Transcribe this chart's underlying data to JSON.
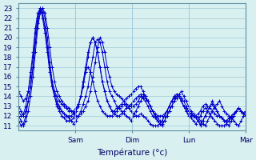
{
  "title": "Température (°c)",
  "xlabel": "Température (°c)",
  "background_color": "#d8f0f0",
  "grid_color": "#a0c8d8",
  "line_color": "#0000cc",
  "yticks": [
    11,
    12,
    13,
    14,
    15,
    16,
    17,
    18,
    19,
    20,
    21,
    22,
    23
  ],
  "ylim": [
    10.5,
    23.5
  ],
  "xlim": [
    0,
    96
  ],
  "xtick_positions": [
    24,
    48,
    72,
    96
  ],
  "xtick_labels": [
    "Sam",
    "Dim",
    "Lun",
    "Mar"
  ],
  "lines": [
    [
      11.5,
      11.0,
      11.2,
      12.0,
      13.5,
      15.0,
      17.0,
      19.5,
      21.5,
      22.8,
      23.0,
      22.5,
      21.0,
      19.0,
      17.0,
      15.5,
      14.5,
      14.0,
      13.5,
      13.2,
      13.0,
      12.8,
      12.5,
      12.3,
      12.0,
      12.0,
      12.2,
      12.5,
      13.0,
      13.5,
      14.5,
      16.0,
      17.5,
      19.0,
      20.0,
      19.5,
      18.5,
      17.0,
      16.0,
      15.0,
      14.5,
      14.2,
      14.0,
      13.8,
      13.5,
      13.2,
      13.0,
      13.0,
      13.0,
      13.2,
      13.5,
      14.0,
      14.2,
      14.0,
      13.5,
      13.0,
      12.5,
      12.0,
      11.5,
      11.2,
      11.0,
      11.5,
      12.0,
      12.5,
      13.0,
      13.5,
      14.0,
      14.2,
      14.5,
      14.0,
      13.5,
      13.0,
      12.5,
      12.2,
      12.0,
      11.8,
      11.5,
      11.2,
      11.0,
      11.5,
      12.0,
      12.5,
      13.0,
      13.2,
      13.5,
      13.0,
      12.5,
      12.2,
      12.0,
      11.8,
      11.5,
      11.2,
      11.0,
      11.5,
      12.0,
      12.5
    ],
    [
      12.0,
      11.5,
      11.0,
      11.5,
      12.5,
      14.0,
      16.0,
      18.5,
      21.0,
      22.5,
      23.0,
      22.0,
      20.0,
      17.5,
      15.5,
      14.5,
      13.5,
      13.0,
      12.5,
      12.2,
      12.0,
      11.8,
      11.5,
      11.2,
      11.5,
      12.0,
      12.5,
      13.2,
      14.0,
      15.0,
      16.5,
      18.0,
      19.5,
      19.8,
      19.5,
      18.5,
      17.0,
      15.5,
      14.5,
      14.0,
      13.5,
      13.0,
      12.8,
      12.5,
      12.2,
      12.0,
      11.8,
      11.5,
      12.0,
      12.5,
      13.0,
      13.5,
      14.0,
      13.8,
      13.5,
      13.0,
      12.5,
      12.0,
      11.8,
      11.5,
      11.2,
      11.5,
      12.0,
      12.5,
      13.0,
      13.5,
      13.8,
      14.0,
      13.5,
      13.0,
      12.8,
      12.5,
      12.2,
      12.0,
      11.8,
      11.5,
      11.0,
      11.5,
      12.0,
      12.5,
      13.0,
      13.5,
      13.0,
      12.5,
      12.0,
      11.8,
      11.5,
      11.2,
      11.0,
      11.5,
      12.0,
      12.5,
      12.8,
      12.5,
      12.2,
      12.0
    ],
    [
      13.0,
      12.5,
      12.0,
      12.5,
      13.5,
      15.0,
      17.0,
      19.5,
      22.0,
      23.0,
      22.5,
      21.0,
      19.0,
      17.0,
      15.0,
      14.0,
      13.0,
      12.5,
      12.0,
      11.8,
      11.5,
      11.5,
      11.5,
      11.8,
      12.5,
      13.2,
      14.0,
      15.5,
      17.0,
      18.5,
      19.5,
      20.0,
      19.5,
      18.5,
      17.0,
      15.5,
      14.5,
      13.5,
      13.0,
      12.5,
      12.2,
      12.0,
      12.0,
      12.2,
      12.5,
      12.8,
      13.0,
      13.2,
      13.5,
      13.8,
      14.0,
      14.2,
      13.8,
      13.5,
      13.0,
      12.5,
      12.0,
      11.8,
      11.5,
      11.2,
      11.5,
      12.0,
      12.5,
      13.0,
      13.5,
      13.8,
      14.0,
      14.2,
      13.8,
      13.5,
      13.0,
      12.5,
      12.2,
      12.0,
      11.8,
      11.5,
      11.2,
      11.5,
      12.0,
      12.5,
      13.0,
      13.2,
      12.8,
      12.5,
      12.0,
      11.8,
      11.5,
      11.5,
      11.5,
      11.8,
      12.0,
      12.5,
      12.8,
      12.5,
      12.2,
      12.0
    ],
    [
      12.5,
      12.0,
      12.2,
      13.0,
      14.5,
      16.5,
      18.5,
      21.0,
      22.5,
      23.0,
      22.0,
      20.5,
      18.5,
      16.5,
      15.0,
      14.0,
      13.2,
      12.8,
      12.5,
      12.2,
      12.0,
      12.0,
      12.0,
      12.2,
      12.5,
      13.0,
      14.0,
      15.5,
      16.5,
      17.0,
      16.5,
      15.5,
      14.5,
      13.5,
      13.0,
      12.5,
      12.2,
      12.0,
      12.0,
      12.0,
      12.2,
      12.5,
      12.8,
      13.0,
      13.2,
      13.0,
      12.8,
      12.5,
      12.2,
      12.0,
      12.0,
      12.2,
      12.0,
      11.8,
      11.5,
      11.2,
      11.0,
      11.0,
      11.0,
      11.2,
      11.5,
      12.0,
      12.5,
      13.0,
      13.5,
      14.0,
      14.2,
      14.0,
      13.5,
      13.0,
      12.5,
      12.0,
      11.8,
      11.5,
      11.2,
      11.5,
      12.0,
      12.5,
      12.8,
      12.5,
      12.2,
      11.8,
      11.5,
      11.2,
      11.0,
      11.0,
      11.0,
      11.2,
      11.5,
      12.0,
      12.2,
      12.5,
      12.8,
      12.5,
      12.2,
      12.0
    ],
    [
      14.5,
      14.0,
      13.5,
      13.8,
      14.5,
      16.0,
      18.0,
      20.5,
      22.0,
      22.8,
      22.5,
      21.0,
      19.0,
      17.0,
      15.5,
      14.5,
      14.0,
      13.5,
      13.2,
      13.0,
      12.8,
      12.5,
      12.5,
      12.5,
      12.8,
      13.2,
      14.0,
      15.0,
      16.5,
      18.0,
      19.5,
      20.0,
      19.5,
      18.5,
      17.0,
      15.5,
      14.5,
      13.5,
      13.0,
      12.5,
      12.5,
      12.8,
      13.0,
      13.2,
      13.5,
      13.8,
      14.0,
      14.2,
      14.5,
      14.8,
      15.0,
      15.0,
      14.5,
      14.0,
      13.5,
      13.0,
      12.5,
      12.2,
      12.0,
      12.0,
      12.0,
      12.2,
      12.5,
      13.0,
      13.5,
      14.0,
      14.2,
      14.0,
      13.5,
      13.0,
      12.5,
      12.2,
      12.0,
      12.0,
      12.0,
      12.2,
      12.5,
      13.0,
      13.2,
      13.0,
      12.8,
      12.5,
      12.2,
      12.0,
      12.0,
      11.8,
      11.5,
      11.5,
      11.8,
      12.0,
      12.2,
      12.5,
      12.8,
      12.5,
      12.2,
      12.5
    ]
  ]
}
